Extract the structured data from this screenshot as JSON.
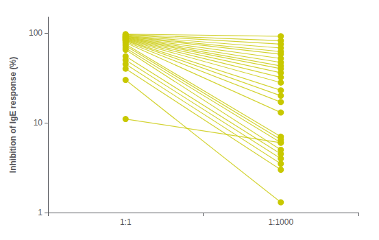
{
  "chart_data": {
    "type": "slope",
    "ylabel": "Inhibition of IgE response (%)",
    "categories": [
      "1:1",
      "1:1000"
    ],
    "values": [
      [
        97,
        92
      ],
      [
        96,
        82
      ],
      [
        95,
        75
      ],
      [
        93,
        68
      ],
      [
        92,
        62
      ],
      [
        91,
        58
      ],
      [
        90,
        52
      ],
      [
        89,
        47
      ],
      [
        88,
        43
      ],
      [
        87,
        40
      ],
      [
        86,
        36
      ],
      [
        85,
        32
      ],
      [
        84,
        28
      ],
      [
        83,
        23
      ],
      [
        82,
        20
      ],
      [
        80,
        17
      ],
      [
        78,
        13
      ],
      [
        75,
        7
      ],
      [
        72,
        6.5
      ],
      [
        68,
        6
      ],
      [
        65,
        5
      ],
      [
        55,
        4.5
      ],
      [
        50,
        4
      ],
      [
        45,
        3.5
      ],
      [
        40,
        3
      ],
      [
        11,
        6
      ],
      [
        30,
        1.3
      ]
    ],
    "color": "#c8c800",
    "log": "y",
    "ylim": [
      1,
      150
    ],
    "yticks": [
      1,
      10,
      100
    ],
    "grid": false
  }
}
